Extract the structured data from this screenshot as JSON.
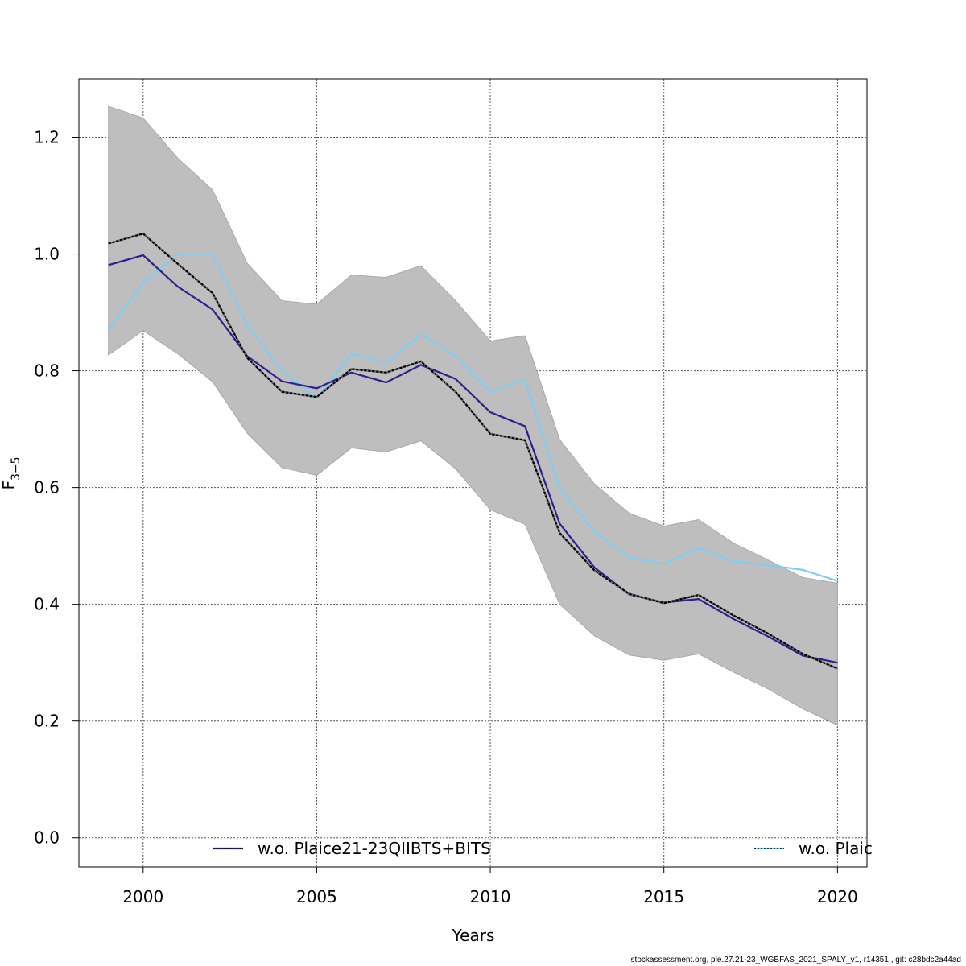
{
  "chart_data": {
    "type": "line",
    "xlabel": "Years",
    "ylabel_main": "F",
    "ylabel_sub": "3−5",
    "xlim": [
      1998.15,
      2020.85
    ],
    "ylim": [
      -0.05,
      1.3
    ],
    "x_ticks": [
      2000,
      2005,
      2010,
      2015,
      2020
    ],
    "y_ticks": [
      0.0,
      0.2,
      0.4,
      0.6,
      0.8,
      1.0,
      1.2
    ],
    "y_tick_labels": [
      "0.0",
      "0.2",
      "0.4",
      "0.6",
      "0.8",
      "1.0",
      "1.2"
    ],
    "grid": true,
    "x": [
      1999,
      2000,
      2001,
      2002,
      2003,
      2004,
      2005,
      2006,
      2007,
      2008,
      2009,
      2010,
      2011,
      2012,
      2013,
      2014,
      2015,
      2016,
      2017,
      2018,
      2019,
      2020
    ],
    "confidence_band": {
      "color": "#bebebe",
      "lower": [
        0.827,
        0.869,
        0.829,
        0.781,
        0.693,
        0.634,
        0.621,
        0.668,
        0.661,
        0.68,
        0.632,
        0.562,
        0.537,
        0.4,
        0.346,
        0.313,
        0.304,
        0.315,
        0.284,
        0.255,
        0.221,
        0.193
      ],
      "upper": [
        1.253,
        1.233,
        1.164,
        1.11,
        0.984,
        0.92,
        0.914,
        0.964,
        0.96,
        0.98,
        0.92,
        0.851,
        0.86,
        0.682,
        0.606,
        0.556,
        0.534,
        0.545,
        0.505,
        0.476,
        0.446,
        0.436
      ]
    },
    "series": [
      {
        "id": "base",
        "color": "#000000",
        "dashed": true,
        "values": [
          1.018,
          1.035,
          0.983,
          0.933,
          0.822,
          0.764,
          0.755,
          0.803,
          0.797,
          0.816,
          0.764,
          0.692,
          0.681,
          0.522,
          0.458,
          0.418,
          0.402,
          0.416,
          0.381,
          0.35,
          0.315,
          0.29
        ]
      },
      {
        "id": "wo_plaice_qiibts_bits",
        "name": "w.o. Plaice21-23QIIBTS+BITS",
        "color": "#2e1f8a",
        "values": [
          0.981,
          0.998,
          0.944,
          0.905,
          0.825,
          0.782,
          0.77,
          0.797,
          0.78,
          0.81,
          0.786,
          0.729,
          0.705,
          0.538,
          0.463,
          0.417,
          0.403,
          0.409,
          0.375,
          0.345,
          0.312,
          0.3
        ]
      },
      {
        "id": "wo_plaice_other",
        "name": "w.o. Plaic",
        "color": "#7ecdf5",
        "values": [
          0.87,
          0.951,
          1.0,
          1.0,
          0.879,
          0.799,
          0.754,
          0.829,
          0.813,
          0.862,
          0.826,
          0.764,
          0.785,
          0.599,
          0.524,
          0.48,
          0.469,
          0.496,
          0.474,
          0.467,
          0.459,
          0.44
        ]
      }
    ],
    "legend": [
      {
        "label": "w.o. Plaice21-23QIIBTS+BITS",
        "color": "#2e1f8a"
      },
      {
        "label": "w.o. Plaic",
        "color": "#7ecdf5"
      }
    ],
    "legend_placement": "bottom"
  },
  "footer": "stockassessment.org, ple.27.21-23_WGBFAS_2021_SPALY_v1, r14351 , git: c28bdc2a44ad"
}
